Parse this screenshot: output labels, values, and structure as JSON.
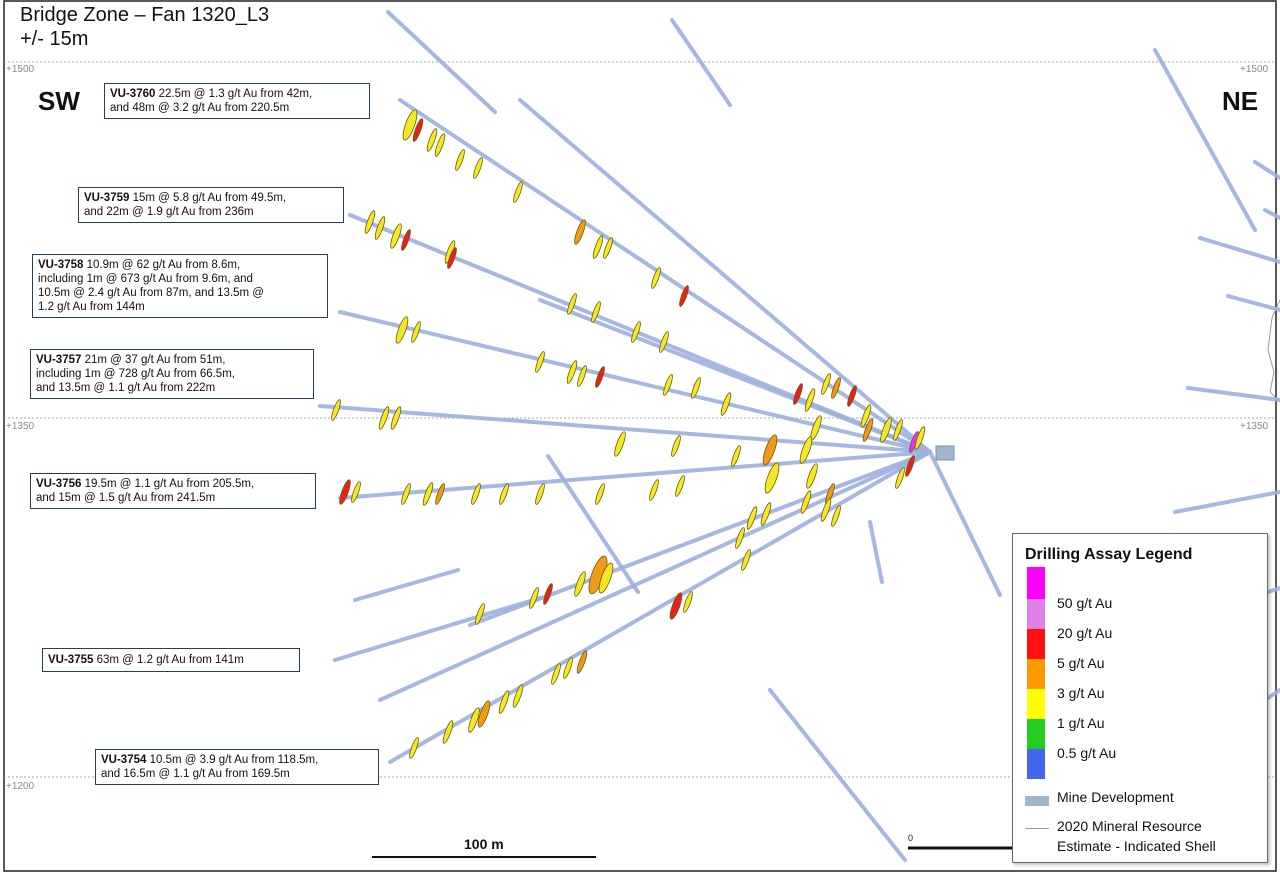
{
  "title": {
    "line1": "Bridge Zone – Fan 1320_L3",
    "line2": "+/- 15m"
  },
  "directions": {
    "sw": "SW",
    "ne": "NE"
  },
  "elevations": {
    "e1500": "+1500",
    "e1350": "+1350",
    "e1200": "+1200"
  },
  "holes": [
    {
      "id": "VU-3760",
      "text": "22.5m @ 1.3 g/t Au from 42m,\nand 48m @ 3.2 g/t Au from 220.5m"
    },
    {
      "id": "VU-3759",
      "text": "15m @ 5.8 g/t Au from 49.5m,\nand 22m @ 1.9 g/t Au from 236m"
    },
    {
      "id": "VU-3758",
      "text": "10.9m @ 62 g/t Au from 8.6m,\nincluding 1m @ 673 g/t Au from 9.6m, and\n10.5m @ 2.4 g/t Au from 87m, and 13.5m @\n1.2 g/t Au from 144m"
    },
    {
      "id": "VU-3757",
      "text": "21m @ 37 g/t Au from 51m,\nincluding 1m @ 728 g/t Au from 66.5m,\nand 13.5m @ 1.1 g/t Au from 222m"
    },
    {
      "id": "VU-3756",
      "text": "19.5m @ 1.1 g/t Au from 205.5m,\nand 15m @ 1.5 g/t Au from 241.5m"
    },
    {
      "id": "VU-3755",
      "text": "63m @ 1.2 g/t Au from 141m"
    },
    {
      "id": "VU-3754",
      "text": "10.5m @ 3.9 g/t Au from 118.5m,\nand 16.5m @ 1.1 g/t Au from 169.5m"
    }
  ],
  "legend": {
    "title": "Drilling Assay Legend",
    "grades": [
      {
        "label": "50 g/t Au",
        "color": "#ff00ff"
      },
      {
        "label": "20 g/t Au",
        "color": "#e080e8"
      },
      {
        "label": "5 g/t Au",
        "color": "#ff1010"
      },
      {
        "label": "3 g/t Au",
        "color": "#ff9900"
      },
      {
        "label": "1 g/t Au",
        "color": "#ffff00"
      },
      {
        "label": "0.5 g/t Au",
        "color": "#22cc22"
      },
      {
        "label": "",
        "color": "#4466ee"
      }
    ],
    "mine_development": "Mine Development",
    "mine_development_color": "#9fb6cc",
    "shell_line1": "2020 Mineral Resource",
    "shell_line2": "Estimate - Indicated Shell"
  },
  "scale": {
    "label": "100 m",
    "zero": "0"
  }
}
